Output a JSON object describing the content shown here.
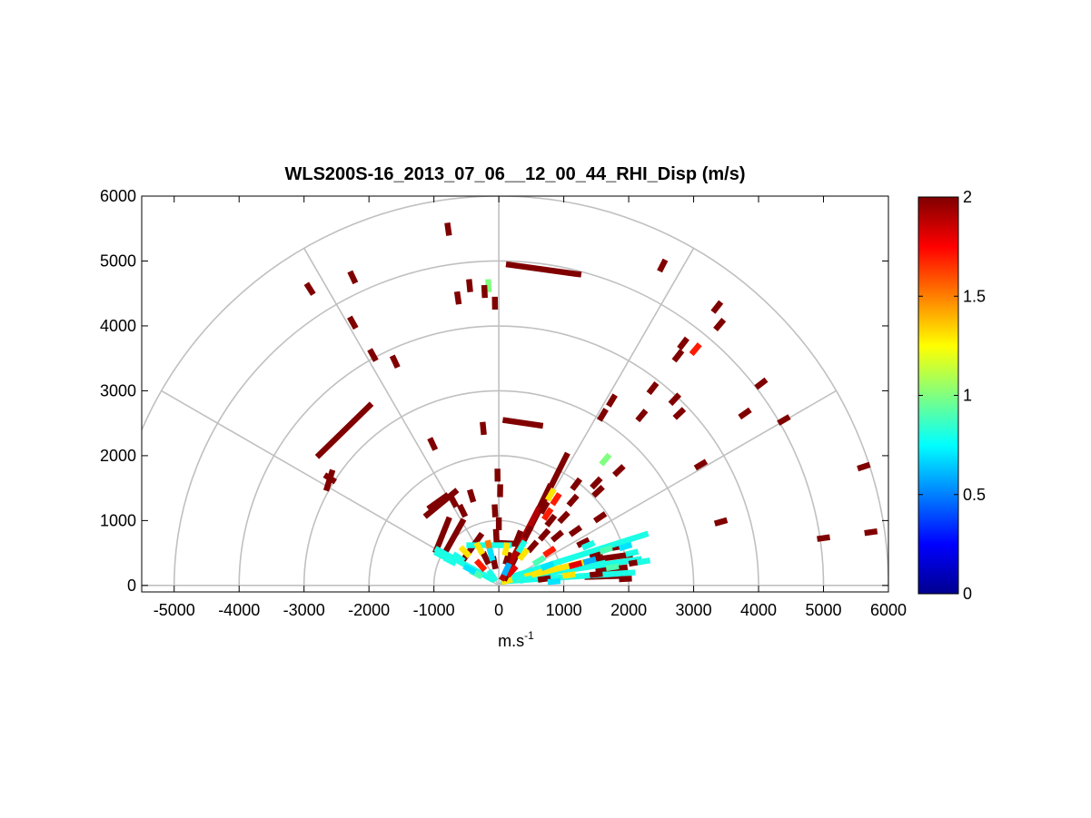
{
  "chart_data": {
    "type": "polar_scatter",
    "title": "WLS200S-16_2013_07_06__12_00_44_RHI_Disp (m/s)",
    "xlabel": "m.s",
    "xlabel_superscript": "-1",
    "ylabel": "",
    "xlim": [
      -5500,
      6000
    ],
    "ylim": [
      -100,
      6000
    ],
    "xticks": [
      -5000,
      -4000,
      -3000,
      -2000,
      -1000,
      0,
      1000,
      2000,
      3000,
      4000,
      5000,
      6000
    ],
    "yticks": [
      0,
      1000,
      2000,
      3000,
      4000,
      5000,
      6000
    ],
    "polar_grid": {
      "range_rings": [
        1000,
        2000,
        3000,
        4000,
        5000,
        6000
      ],
      "spokes_deg": [
        0,
        30,
        60,
        90,
        120,
        150,
        180
      ]
    },
    "colorbar": {
      "min": 0,
      "max": 2,
      "ticks": [
        0,
        0.5,
        1,
        1.5,
        2
      ],
      "colormap": "jet"
    },
    "marker_width": 90,
    "points": [
      {
        "x": -780,
        "y": 5490,
        "v": 2.0
      },
      {
        "x": -2910,
        "y": 4570,
        "v": 2.0
      },
      {
        "x": -2250,
        "y": 4750,
        "v": 2.0
      },
      {
        "x": -2250,
        "y": 4050,
        "v": 2.0
      },
      {
        "x": -1940,
        "y": 3550,
        "v": 2.0
      },
      {
        "x": -1600,
        "y": 3450,
        "v": 2.0
      },
      {
        "x": -450,
        "y": 4620,
        "v": 2.0
      },
      {
        "x": -160,
        "y": 4620,
        "v": 1.0
      },
      {
        "x": -220,
        "y": 4530,
        "v": 2.0
      },
      {
        "x": -630,
        "y": 4430,
        "v": 2.0
      },
      {
        "x": -60,
        "y": 4350,
        "v": 2.0
      },
      {
        "x": 2520,
        "y": 4930,
        "v": 2.0
      },
      {
        "x": 3360,
        "y": 4290,
        "v": 2.0
      },
      {
        "x": 3400,
        "y": 4020,
        "v": 2.0
      },
      {
        "x": 2840,
        "y": 3730,
        "v": 2.0
      },
      {
        "x": 3030,
        "y": 3640,
        "v": 1.7
      },
      {
        "x": 2760,
        "y": 3540,
        "v": 2.0
      },
      {
        "x": 2370,
        "y": 3040,
        "v": 2.0
      },
      {
        "x": 2710,
        "y": 2870,
        "v": 2.0
      },
      {
        "x": 2780,
        "y": 2650,
        "v": 2.0
      },
      {
        "x": 3790,
        "y": 2650,
        "v": 2.0
      },
      {
        "x": 4040,
        "y": 3110,
        "v": 2.0
      },
      {
        "x": 4390,
        "y": 2550,
        "v": 2.0
      },
      {
        "x": 1740,
        "y": 2850,
        "v": 2.0
      },
      {
        "x": 1600,
        "y": 2630,
        "v": 2.0
      },
      {
        "x": 2200,
        "y": 2620,
        "v": 2.0
      },
      {
        "x": -2600,
        "y": 1650,
        "v": 2.0
      },
      {
        "x": -1020,
        "y": 2180,
        "v": 2.0
      },
      {
        "x": -240,
        "y": 2420,
        "v": 2.0
      },
      {
        "x": 1640,
        "y": 1940,
        "v": 1.0
      },
      {
        "x": 1850,
        "y": 1770,
        "v": 2.0
      },
      {
        "x": 1500,
        "y": 1580,
        "v": 2.0
      },
      {
        "x": 1530,
        "y": 1450,
        "v": 2.0
      },
      {
        "x": 1190,
        "y": 1560,
        "v": 2.0
      },
      {
        "x": 1140,
        "y": 1310,
        "v": 2.0
      },
      {
        "x": 1560,
        "y": 1050,
        "v": 2.0
      },
      {
        "x": 3110,
        "y": 1860,
        "v": 2.0
      },
      {
        "x": 3420,
        "y": 980,
        "v": 2.0
      },
      {
        "x": 5000,
        "y": 730,
        "v": 2.0
      },
      {
        "x": 5620,
        "y": 1830,
        "v": 2.0
      },
      {
        "x": 5730,
        "y": 820,
        "v": 2.0
      },
      {
        "x": -20,
        "y": 1700,
        "v": 2.0
      },
      {
        "x": 20,
        "y": 1460,
        "v": 2.0
      },
      {
        "x": -60,
        "y": 1150,
        "v": 2.0
      },
      {
        "x": 0,
        "y": 950,
        "v": 2.0
      },
      {
        "x": -40,
        "y": 770,
        "v": 2.0
      },
      {
        "x": -700,
        "y": 1300,
        "v": 2.0
      },
      {
        "x": -560,
        "y": 1150,
        "v": 2.0
      },
      {
        "x": -420,
        "y": 1380,
        "v": 2.0
      },
      {
        "x": 300,
        "y": 750,
        "v": 2.0
      },
      {
        "x": 450,
        "y": 820,
        "v": 2.0
      },
      {
        "x": 520,
        "y": 600,
        "v": 2.0
      },
      {
        "x": 700,
        "y": 780,
        "v": 2.0
      },
      {
        "x": 800,
        "y": 1000,
        "v": 2.0
      },
      {
        "x": 900,
        "y": 760,
        "v": 2.0
      },
      {
        "x": 1180,
        "y": 840,
        "v": 2.0
      },
      {
        "x": 1300,
        "y": 660,
        "v": 2.0
      },
      {
        "x": 700,
        "y": 1200,
        "v": 2.0
      },
      {
        "x": 1000,
        "y": 1050,
        "v": 2.0
      },
      {
        "x": 800,
        "y": 1400,
        "v": 1.3
      },
      {
        "x": 880,
        "y": 1330,
        "v": 1.7
      },
      {
        "x": 750,
        "y": 1100,
        "v": 1.7
      },
      {
        "x": 1500,
        "y": 460,
        "v": 2.0
      },
      {
        "x": 2100,
        "y": 350,
        "v": 2.0
      },
      {
        "x": 1500,
        "y": 170,
        "v": 2.0
      },
      {
        "x": 1950,
        "y": 100,
        "v": 2.0
      },
      {
        "x": 700,
        "y": 100,
        "v": 2.0
      },
      {
        "x": -200,
        "y": 420,
        "v": 2.0
      },
      {
        "x": -70,
        "y": 350,
        "v": 2.0
      },
      {
        "x": 130,
        "y": 420,
        "v": 2.0
      },
      {
        "x": -300,
        "y": 570,
        "v": 1.3
      },
      {
        "x": -520,
        "y": 520,
        "v": 1.3
      },
      {
        "x": -150,
        "y": 600,
        "v": 1.5
      },
      {
        "x": 110,
        "y": 560,
        "v": 1.3
      },
      {
        "x": 380,
        "y": 480,
        "v": 1.3
      },
      {
        "x": 620,
        "y": 200,
        "v": 1.3
      },
      {
        "x": 620,
        "y": 380,
        "v": 0.9
      },
      {
        "x": 780,
        "y": 520,
        "v": 1.7
      },
      {
        "x": 1180,
        "y": 320,
        "v": 1.8
      },
      {
        "x": 1080,
        "y": 160,
        "v": 1.3
      },
      {
        "x": 1550,
        "y": 330,
        "v": 0.8
      },
      {
        "x": -280,
        "y": 310,
        "v": 1.7
      },
      {
        "x": 200,
        "y": 220,
        "v": 1.8
      },
      {
        "x": -900,
        "y": 470,
        "v": 0.8
      },
      {
        "x": -620,
        "y": 430,
        "v": 0.8
      },
      {
        "x": -350,
        "y": 180,
        "v": 0.9
      },
      {
        "x": -120,
        "y": 480,
        "v": 0.7
      },
      {
        "x": 350,
        "y": 600,
        "v": 0.8
      },
      {
        "x": 120,
        "y": 250,
        "v": 0.6
      },
      {
        "x": 420,
        "y": 90,
        "v": 0.8
      },
      {
        "x": 850,
        "y": 60,
        "v": 0.7
      },
      {
        "x": 1400,
        "y": 380,
        "v": 0.6
      },
      {
        "x": 1750,
        "y": 280,
        "v": 0.9
      },
      {
        "x": 2230,
        "y": 370,
        "v": 0.8
      },
      {
        "x": 1380,
        "y": 620,
        "v": 0.8
      },
      {
        "x": 1950,
        "y": 600,
        "v": 0.7
      },
      {
        "x": 1650,
        "y": 550,
        "v": 0.9
      },
      {
        "x": 2050,
        "y": 500,
        "v": 0.8
      },
      {
        "x": -750,
        "y": 380,
        "v": 0.8
      },
      {
        "x": -450,
        "y": 250,
        "v": 0.7
      },
      {
        "x": -100,
        "y": 150,
        "v": 0.8
      },
      {
        "x": 300,
        "y": 120,
        "v": 0.8
      },
      {
        "x": 750,
        "y": 300,
        "v": 0.7
      }
    ],
    "streaks": [
      {
        "x1": 110,
        "y1": 4950,
        "x2": 1270,
        "y2": 4790,
        "v": 2.0
      },
      {
        "x1": 60,
        "y1": 2550,
        "x2": 680,
        "y2": 2460,
        "v": 2.0
      },
      {
        "x1": -2800,
        "y1": 1980,
        "x2": -1960,
        "y2": 2800,
        "v": 2.0
      },
      {
        "x1": -2660,
        "y1": 1460,
        "x2": -2560,
        "y2": 1780,
        "v": 2.0
      },
      {
        "x1": 1480,
        "y1": 530,
        "x2": 1980,
        "y2": 620,
        "v": 2.0
      },
      {
        "x1": 1420,
        "y1": 390,
        "x2": 2060,
        "y2": 480,
        "v": 2.0
      },
      {
        "x1": 1490,
        "y1": 220,
        "x2": 1980,
        "y2": 280,
        "v": 2.0
      },
      {
        "x1": 1320,
        "y1": 130,
        "x2": 1960,
        "y2": 150,
        "v": 2.0
      },
      {
        "x1": 30,
        "y1": 80,
        "x2": 2200,
        "y2": 410,
        "v": 0.8
      },
      {
        "x1": 30,
        "y1": 80,
        "x2": 2300,
        "y2": 800,
        "v": 0.8
      },
      {
        "x1": 30,
        "y1": 60,
        "x2": 2100,
        "y2": 200,
        "v": 0.8
      },
      {
        "x1": 40,
        "y1": 50,
        "x2": 1400,
        "y2": 380,
        "v": 1.3
      },
      {
        "x1": 80,
        "y1": 80,
        "x2": 1060,
        "y2": 2040,
        "v": 2.0
      },
      {
        "x1": 80,
        "y1": 80,
        "x2": 800,
        "y2": 1560,
        "v": 2.0
      },
      {
        "x1": 40,
        "y1": 80,
        "x2": 620,
        "y2": 1200,
        "v": 1.9
      },
      {
        "x1": -980,
        "y1": 500,
        "x2": -760,
        "y2": 1050,
        "v": 2.0
      },
      {
        "x1": -860,
        "y1": 450,
        "x2": -540,
        "y2": 1020,
        "v": 2.0
      },
      {
        "x1": -600,
        "y1": 320,
        "x2": -260,
        "y2": 800,
        "v": 2.0
      },
      {
        "x1": -980,
        "y1": 570,
        "x2": -80,
        "y2": 80,
        "v": 0.8
      },
      {
        "x1": -1090,
        "y1": 1180,
        "x2": -780,
        "y2": 1400,
        "v": 2.0
      },
      {
        "x1": -1140,
        "y1": 1060,
        "x2": -640,
        "y2": 1470,
        "v": 2.0
      },
      {
        "x1": -80,
        "y1": 660,
        "x2": 300,
        "y2": 640,
        "v": 2.0
      },
      {
        "x1": -500,
        "y1": 620,
        "x2": 200,
        "y2": 620,
        "v": 0.8
      }
    ]
  }
}
